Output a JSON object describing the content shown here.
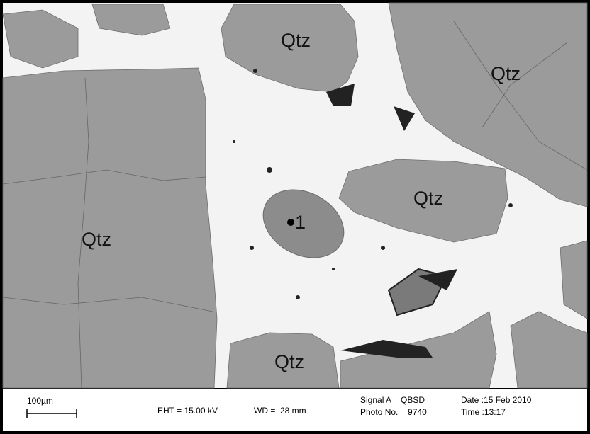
{
  "labels": [
    "Qtz",
    "Qtz",
    "Qtz",
    "Qtz",
    "Qtz"
  ],
  "point_label": "1",
  "info_bar": {
    "scale": "100µm",
    "eht": "EHT = 15.00 kV",
    "wd": "WD =  28 mm",
    "signal": "Signal A = QBSD",
    "photo": "Photo No. = 9740",
    "date": "Date :15 Feb 2010",
    "time": "Time :13:17"
  }
}
